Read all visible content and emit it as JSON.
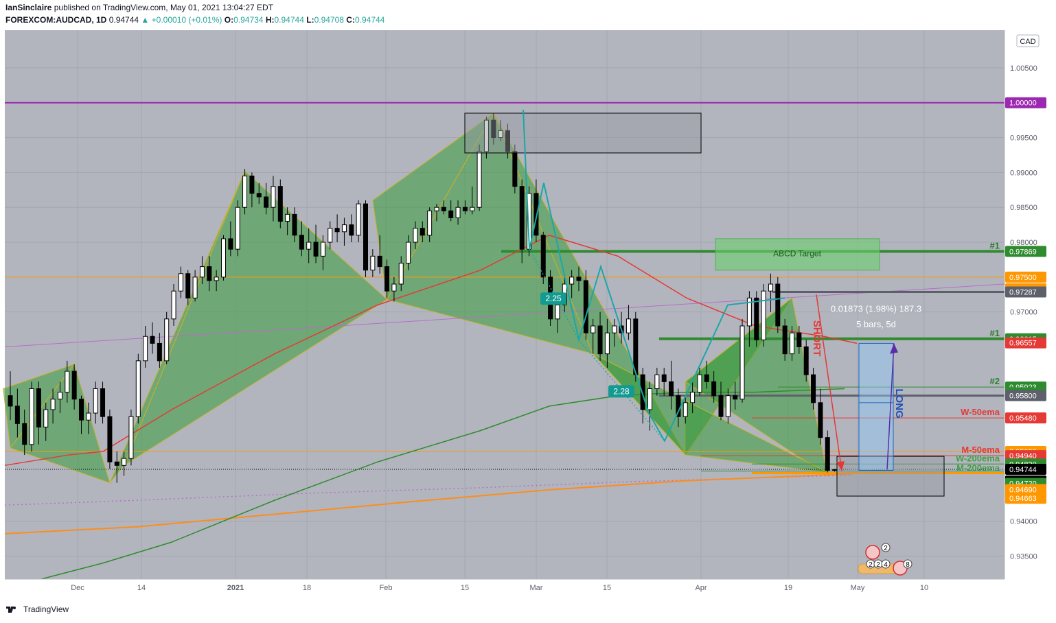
{
  "header": {
    "author": "IanSinclaire",
    "published": "published on TradingView.com, May 01, 2021 13:04:27 EDT",
    "symbol": "FOREXCOM:AUDCAD, 1D",
    "last": "0.94744",
    "change": "+0.00010 (+0.01%)",
    "o_label": "O:",
    "o": "0.94734",
    "h_label": "H:",
    "h": "0.94744",
    "l_label": "L:",
    "l": "0.94708",
    "c_label": "C:",
    "c": "0.94744"
  },
  "footer": {
    "brand": "TradingView"
  },
  "colors": {
    "background": "#b2b5be",
    "up_candle": "#ffffff",
    "down_candle": "#000000",
    "pattern_fill": "#2e9a2e",
    "ema_red": "#e53935",
    "ema_green": "#2e8b2e",
    "ema_orange": "#ff8c1a"
  },
  "chart_data": {
    "type": "candlestick",
    "currency": "CAD",
    "x_ticks": [
      "Dec",
      "14",
      "2021",
      "18",
      "Feb",
      "15",
      "Mar",
      "15",
      "Apr",
      "19",
      "May",
      "10"
    ],
    "y_ticks": [
      "1.00500",
      "0.99500",
      "0.99000",
      "0.98500",
      "0.98000",
      "0.97000",
      "0.95000",
      "0.94000",
      "0.93500"
    ],
    "ylim": [
      0.9317,
      1.0104
    ],
    "price_labels": [
      {
        "value": 1.0,
        "text": "1.00000",
        "color": "#9c27b0"
      },
      {
        "value": 0.97869,
        "text": "0.97869",
        "color": "#2e8b2e"
      },
      {
        "value": 0.975,
        "text": "0.97500",
        "color": "#ff9800"
      },
      {
        "value": 0.975,
        "text": "0.97500",
        "color": "#ff9800"
      },
      {
        "value": 0.97287,
        "text": "0.97287",
        "color": "#5d606b"
      },
      {
        "value": 0.96615,
        "text": "0.96615",
        "color": "#2e8b2e"
      },
      {
        "value": 0.96557,
        "text": "0.96557",
        "color": "#e53935"
      },
      {
        "value": 0.95923,
        "text": "0.95923",
        "color": "#2e8b2e"
      },
      {
        "value": 0.959,
        "text": "0.95900",
        "color": "#2e8b2e"
      },
      {
        "value": 0.958,
        "text": "0.95800",
        "color": "#5d606b"
      },
      {
        "value": 0.9548,
        "text": "0.95480",
        "color": "#e53935"
      },
      {
        "value": 0.95,
        "text": "0.95000",
        "color": "#ff9800"
      },
      {
        "value": 0.9494,
        "text": "0.94940",
        "color": "#e53935"
      },
      {
        "value": 0.9482,
        "text": "0.94820",
        "color": "#2e8b2e"
      },
      {
        "value": 0.94744,
        "text": "0.94744",
        "color": "#000000"
      },
      {
        "value": 0.9463,
        "text": "03:55:35",
        "color": "#000000"
      },
      {
        "value": 0.9472,
        "text": "0.94720",
        "color": "#2e8b2e"
      },
      {
        "value": 0.9469,
        "text": "0.94690",
        "color": "#ff9800"
      },
      {
        "value": 0.94663,
        "text": "0.94663",
        "color": "#ff9800"
      }
    ],
    "annotations": {
      "abcd_target": "ABCD Target",
      "measure_1": "0.01873 (1.98%) 187.3",
      "measure_2": "5 bars, 5d",
      "short": "SHORT",
      "long": "LONG",
      "r1": "2.25",
      "r2": "2.28",
      "level_1a": "#1",
      "level_1b": "#1",
      "level_2": "#2",
      "w50": "W-50ema",
      "m50": "M-50ema",
      "w200": "W-200ema",
      "m200": "M-200ema",
      "event_counts": [
        "2",
        "2",
        "2",
        "4",
        "8"
      ]
    },
    "candles": [
      [
        0.958,
        0.9615,
        0.9545,
        0.9565
      ],
      [
        0.9565,
        0.959,
        0.952,
        0.954
      ],
      [
        0.954,
        0.956,
        0.9495,
        0.951
      ],
      [
        0.951,
        0.96,
        0.95,
        0.959
      ],
      [
        0.959,
        0.96,
        0.951,
        0.9535
      ],
      [
        0.9535,
        0.957,
        0.9515,
        0.956
      ],
      [
        0.956,
        0.959,
        0.954,
        0.9575
      ],
      [
        0.9575,
        0.96,
        0.9555,
        0.9585
      ],
      [
        0.9585,
        0.963,
        0.957,
        0.9615
      ],
      [
        0.9615,
        0.9625,
        0.956,
        0.9575
      ],
      [
        0.9575,
        0.958,
        0.9525,
        0.9545
      ],
      [
        0.9545,
        0.957,
        0.9525,
        0.9555
      ],
      [
        0.9555,
        0.96,
        0.954,
        0.959
      ],
      [
        0.959,
        0.96,
        0.954,
        0.955
      ],
      [
        0.955,
        0.956,
        0.9475,
        0.9485
      ],
      [
        0.9485,
        0.95,
        0.9455,
        0.948
      ],
      [
        0.948,
        0.95,
        0.9465,
        0.949
      ],
      [
        0.949,
        0.956,
        0.948,
        0.955
      ],
      [
        0.955,
        0.964,
        0.954,
        0.963
      ],
      [
        0.963,
        0.968,
        0.962,
        0.9665
      ],
      [
        0.9665,
        0.9685,
        0.964,
        0.9655
      ],
      [
        0.9655,
        0.967,
        0.962,
        0.963
      ],
      [
        0.963,
        0.97,
        0.9625,
        0.969
      ],
      [
        0.969,
        0.974,
        0.968,
        0.973
      ],
      [
        0.973,
        0.9765,
        0.972,
        0.9755
      ],
      [
        0.9755,
        0.976,
        0.971,
        0.972
      ],
      [
        0.972,
        0.976,
        0.9715,
        0.975
      ],
      [
        0.975,
        0.978,
        0.974,
        0.9765
      ],
      [
        0.9765,
        0.978,
        0.973,
        0.9745
      ],
      [
        0.9745,
        0.976,
        0.973,
        0.975
      ],
      [
        0.975,
        0.981,
        0.9745,
        0.9805
      ],
      [
        0.9805,
        0.983,
        0.978,
        0.979
      ],
      [
        0.979,
        0.986,
        0.978,
        0.985
      ],
      [
        0.985,
        0.9905,
        0.984,
        0.9895
      ],
      [
        0.9895,
        0.99,
        0.985,
        0.987
      ],
      [
        0.987,
        0.9885,
        0.9855,
        0.9865
      ],
      [
        0.9865,
        0.9885,
        0.984,
        0.985
      ],
      [
        0.985,
        0.9895,
        0.983,
        0.988
      ],
      [
        0.988,
        0.989,
        0.982,
        0.983
      ],
      [
        0.983,
        0.985,
        0.981,
        0.984
      ],
      [
        0.984,
        0.985,
        0.98,
        0.981
      ],
      [
        0.981,
        0.983,
        0.978,
        0.979
      ],
      [
        0.979,
        0.982,
        0.977,
        0.98
      ],
      [
        0.98,
        0.9825,
        0.977,
        0.978
      ],
      [
        0.978,
        0.981,
        0.976,
        0.98
      ],
      [
        0.98,
        0.983,
        0.979,
        0.982
      ],
      [
        0.982,
        0.984,
        0.98,
        0.9815
      ],
      [
        0.9815,
        0.9835,
        0.9795,
        0.9825
      ],
      [
        0.9825,
        0.984,
        0.98,
        0.981
      ],
      [
        0.981,
        0.986,
        0.98,
        0.9855
      ],
      [
        0.9855,
        0.986,
        0.975,
        0.976
      ],
      [
        0.976,
        0.979,
        0.975,
        0.978
      ],
      [
        0.978,
        0.981,
        0.9755,
        0.9765
      ],
      [
        0.9765,
        0.9775,
        0.972,
        0.973
      ],
      [
        0.973,
        0.975,
        0.9715,
        0.974
      ],
      [
        0.974,
        0.978,
        0.973,
        0.977
      ],
      [
        0.977,
        0.981,
        0.976,
        0.98
      ],
      [
        0.98,
        0.983,
        0.979,
        0.982
      ],
      [
        0.982,
        0.983,
        0.98,
        0.981
      ],
      [
        0.981,
        0.985,
        0.98,
        0.9845
      ],
      [
        0.9845,
        0.9855,
        0.983,
        0.985
      ],
      [
        0.985,
        0.986,
        0.984,
        0.9845
      ],
      [
        0.9845,
        0.986,
        0.983,
        0.9835
      ],
      [
        0.9835,
        0.986,
        0.9825,
        0.985
      ],
      [
        0.985,
        0.986,
        0.984,
        0.9845
      ],
      [
        0.9845,
        0.988,
        0.984,
        0.985
      ],
      [
        0.985,
        0.994,
        0.9845,
        0.993
      ],
      [
        0.993,
        0.998,
        0.992,
        0.9975
      ],
      [
        0.9975,
        0.9985,
        0.994,
        0.995
      ],
      [
        0.995,
        0.9975,
        0.9945,
        0.996
      ],
      [
        0.996,
        0.997,
        0.992,
        0.993
      ],
      [
        0.993,
        0.994,
        0.987,
        0.988
      ],
      [
        0.988,
        0.989,
        0.977,
        0.979
      ],
      [
        0.979,
        0.988,
        0.978,
        0.987
      ],
      [
        0.987,
        0.989,
        0.98,
        0.981
      ],
      [
        0.981,
        0.9815,
        0.974,
        0.975
      ],
      [
        0.975,
        0.976,
        0.968,
        0.969
      ],
      [
        0.969,
        0.972,
        0.967,
        0.971
      ],
      [
        0.971,
        0.975,
        0.97,
        0.974
      ],
      [
        0.974,
        0.976,
        0.972,
        0.975
      ],
      [
        0.975,
        0.9765,
        0.973,
        0.9745
      ],
      [
        0.9745,
        0.976,
        0.966,
        0.967
      ],
      [
        0.967,
        0.969,
        0.964,
        0.968
      ],
      [
        0.968,
        0.97,
        0.963,
        0.964
      ],
      [
        0.964,
        0.969,
        0.962,
        0.967
      ],
      [
        0.967,
        0.969,
        0.965,
        0.968
      ],
      [
        0.968,
        0.97,
        0.9655,
        0.967
      ],
      [
        0.967,
        0.971,
        0.966,
        0.969
      ],
      [
        0.969,
        0.97,
        0.96,
        0.961
      ],
      [
        0.961,
        0.962,
        0.954,
        0.956
      ],
      [
        0.956,
        0.96,
        0.953,
        0.959
      ],
      [
        0.959,
        0.962,
        0.958,
        0.961
      ],
      [
        0.961,
        0.962,
        0.958,
        0.96
      ],
      [
        0.96,
        0.963,
        0.956,
        0.958
      ],
      [
        0.958,
        0.959,
        0.9535,
        0.955
      ],
      [
        0.955,
        0.958,
        0.954,
        0.957
      ],
      [
        0.957,
        0.96,
        0.9555,
        0.9585
      ],
      [
        0.9585,
        0.962,
        0.958,
        0.961
      ],
      [
        0.961,
        0.963,
        0.959,
        0.96
      ],
      [
        0.96,
        0.9615,
        0.957,
        0.958
      ],
      [
        0.958,
        0.96,
        0.9545,
        0.955
      ],
      [
        0.955,
        0.959,
        0.954,
        0.958
      ],
      [
        0.958,
        0.96,
        0.956,
        0.9575
      ],
      [
        0.9575,
        0.969,
        0.957,
        0.968
      ],
      [
        0.968,
        0.973,
        0.965,
        0.972
      ],
      [
        0.972,
        0.973,
        0.965,
        0.966
      ],
      [
        0.966,
        0.974,
        0.965,
        0.973
      ],
      [
        0.973,
        0.9755,
        0.97,
        0.974
      ],
      [
        0.974,
        0.975,
        0.967,
        0.968
      ],
      [
        0.968,
        0.969,
        0.963,
        0.964
      ],
      [
        0.964,
        0.968,
        0.963,
        0.967
      ],
      [
        0.967,
        0.968,
        0.964,
        0.965
      ],
      [
        0.965,
        0.966,
        0.96,
        0.961
      ],
      [
        0.961,
        0.962,
        0.956,
        0.957
      ],
      [
        0.957,
        0.959,
        0.951,
        0.952
      ],
      [
        0.952,
        0.953,
        0.947,
        0.9473
      ],
      [
        0.9473,
        0.9475,
        0.9471,
        0.9474
      ]
    ]
  }
}
